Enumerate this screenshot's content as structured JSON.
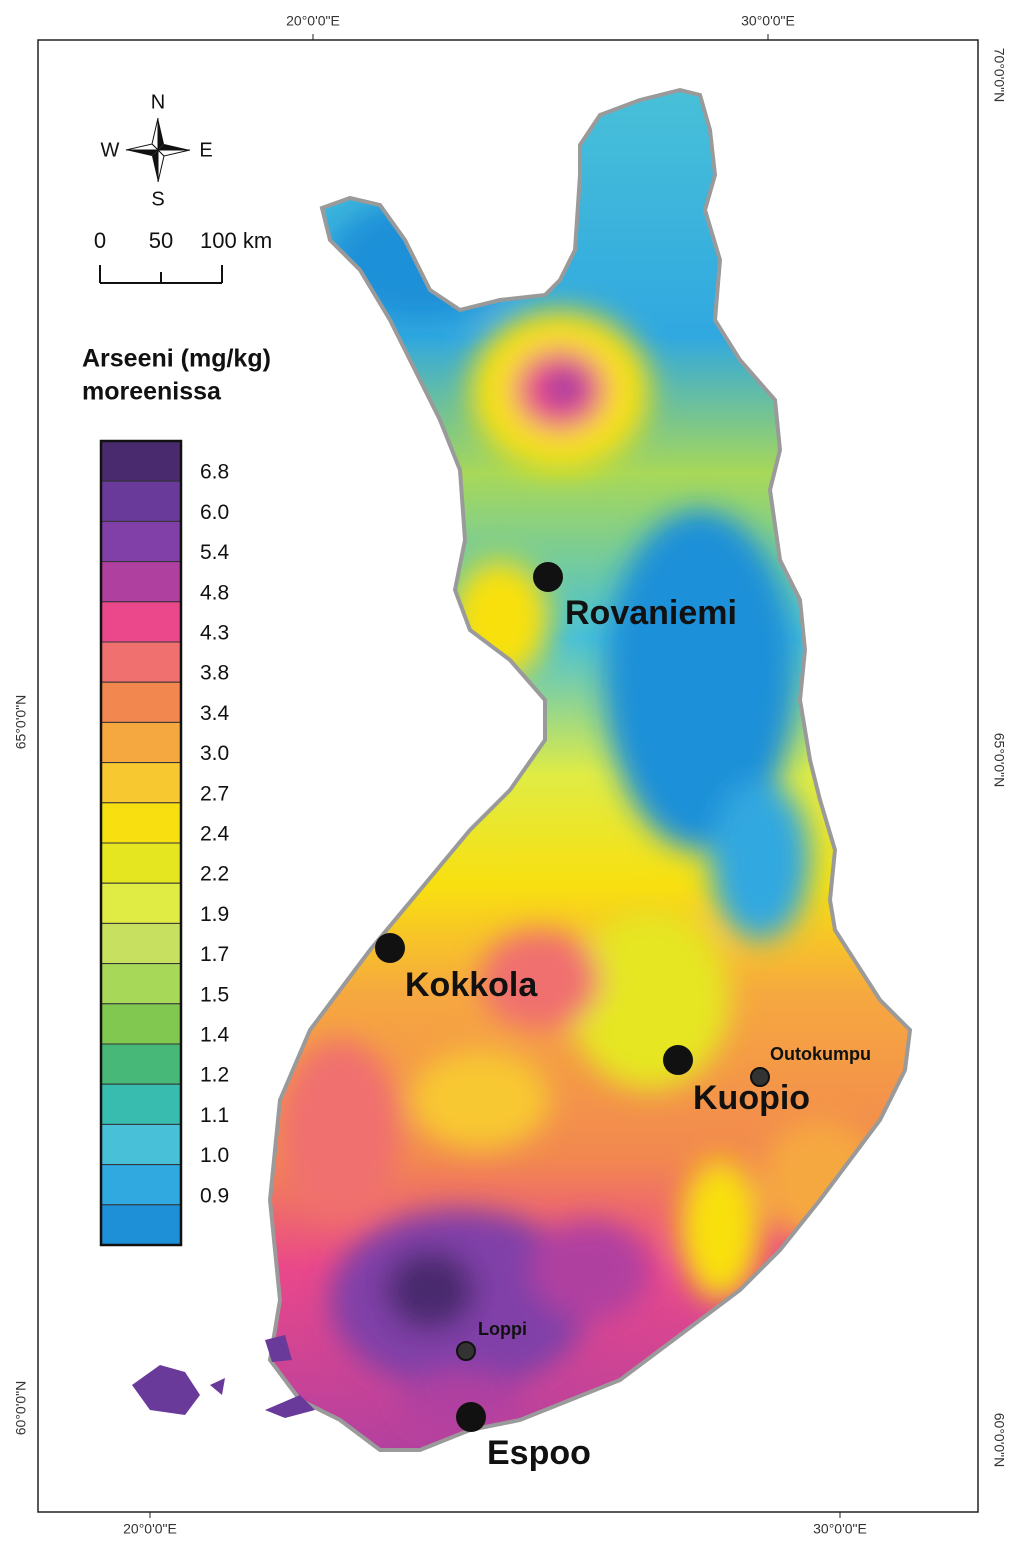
{
  "graticule": {
    "top": [
      "20°0'0\"E",
      "30°0'0\"E"
    ],
    "bottom": [
      "20°0'0\"E",
      "30°0'0\"E"
    ],
    "left": [
      "65°0'0\"N",
      "60°0'0\"N"
    ],
    "right": [
      "70°0'0\"N",
      "65°0'0\"N",
      "60°0'0\"N"
    ]
  },
  "compass": {
    "north": "N",
    "east": "E",
    "south": "S",
    "west": "W"
  },
  "scale_bar": {
    "labels": [
      "0",
      "50",
      "100 km"
    ]
  },
  "legend": {
    "title": [
      "Arseeni (mg/kg)",
      "moreenissa"
    ],
    "labels": [
      "6.8",
      "6.0",
      "5.4",
      "4.8",
      "4.3",
      "3.8",
      "3.4",
      "3.0",
      "2.7",
      "2.4",
      "2.2",
      "1.9",
      "1.7",
      "1.5",
      "1.4",
      "1.2",
      "1.1",
      "1.0",
      "0.9"
    ],
    "colors": [
      "#4a2a6e",
      "#6a3a9a",
      "#8040a8",
      "#b040a0",
      "#ea488a",
      "#f07070",
      "#f28850",
      "#f6a840",
      "#f8c830",
      "#f8e010",
      "#e6e620",
      "#e0ec44",
      "#c8e060",
      "#a8d858",
      "#80c850",
      "#48b878",
      "#38bcb0",
      "#48c0d8",
      "#30a8e0",
      "#1e90d8"
    ]
  },
  "cities": [
    "Rovaniemi",
    "Kokkola",
    "Kuopio",
    "Espoo",
    "Outokumpu",
    "Loppi"
  ]
}
